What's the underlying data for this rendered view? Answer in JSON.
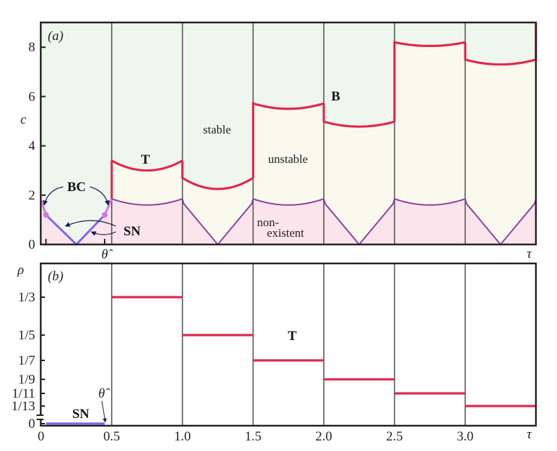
{
  "colors": {
    "stable": "#eef6ee",
    "unstable": "#f9f9ee",
    "nonexistent": "#fbe4ec",
    "torus_boundary": "#e0284a",
    "lower_boundary": "#8b3fa0",
    "saddle_node": "#7b68ee",
    "border_collision": "#d277e6",
    "separator": "#555555",
    "axis": "#222222"
  },
  "chart_data": [
    {
      "panel": "(a)",
      "type": "area",
      "xlabel": "τ",
      "ylabel": "c",
      "xlim": [
        0,
        3.5
      ],
      "ylim": [
        0,
        9
      ],
      "grid": false,
      "yticks": [
        0,
        2,
        4,
        6,
        8
      ],
      "ytick_labels": [
        "0",
        "2",
        "4",
        "6",
        "8"
      ],
      "xtick_marks": [
        0.035,
        0.45
      ],
      "xtick_labels": [
        "",
        "θ̂"
      ],
      "separators": [
        0.5,
        1.0,
        1.5,
        2.0,
        2.5,
        3.0
      ],
      "region_labels": {
        "stable": "stable",
        "unstable": "unstable",
        "nonexistent_1": "non-",
        "nonexistent_2": "existent"
      },
      "annotations": {
        "T": "T",
        "B": "B",
        "BC": "BC",
        "SN": "SN"
      },
      "first_interval_boundary": {
        "border_collision_left": [
          [
            0,
            1.8
          ],
          [
            0.035,
            1.2
          ]
        ],
        "saddle_node": [
          [
            0.035,
            1.2
          ],
          [
            0.25,
            0
          ],
          [
            0.45,
            1.2
          ]
        ],
        "border_collision_right": [
          [
            0.45,
            1.2
          ],
          [
            0.5,
            1.85
          ]
        ]
      },
      "intervals": [
        {
          "tau": [
            0.5,
            1.0
          ],
          "upper_ends": 3.4,
          "upper_min": 3.0,
          "lower": "arc",
          "lower_ends": 1.85,
          "lower_min": 1.6
        },
        {
          "tau": [
            1.0,
            1.5
          ],
          "upper_ends": 2.7,
          "upper_min": 2.25,
          "lower": "v",
          "lower_ends": 1.85,
          "lower_min": 0
        },
        {
          "tau": [
            1.5,
            2.0
          ],
          "upper_ends": 5.72,
          "upper_min": 5.5,
          "lower": "arc",
          "lower_ends": 1.85,
          "lower_min": 1.6
        },
        {
          "tau": [
            2.0,
            2.5
          ],
          "upper_ends": 4.98,
          "upper_min": 4.78,
          "lower": "v",
          "lower_ends": 1.85,
          "lower_min": 0
        },
        {
          "tau": [
            2.5,
            3.0
          ],
          "upper_ends": 8.2,
          "upper_min": 8.05,
          "lower": "arc",
          "lower_ends": 1.85,
          "lower_min": 1.6
        },
        {
          "tau": [
            3.0,
            3.5
          ],
          "upper_ends": 7.5,
          "upper_min": 7.3,
          "lower": "v",
          "lower_ends": 1.85,
          "lower_min": 0
        }
      ]
    },
    {
      "panel": "(b)",
      "type": "line",
      "xlabel": "τ",
      "ylabel": "ρ",
      "xlim": [
        0,
        3.5
      ],
      "grid": false,
      "xticks": [
        0,
        0.5,
        1.0,
        1.5,
        2.0,
        2.5,
        3.0
      ],
      "xtick_labels": [
        "0",
        "0.5",
        "1.0",
        "1.5",
        "2.0",
        "2.5",
        "3.0"
      ],
      "yticks": [
        "0",
        "1/13",
        "1/11",
        "1/9",
        "1/7",
        "1/5",
        "1/3"
      ],
      "y_axis_break": true,
      "separators": [
        0.5,
        1.0,
        1.5,
        2.0,
        2.5,
        3.0
      ],
      "annotations": {
        "T": "T",
        "SN": "SN",
        "theta_hat": "θ̂"
      },
      "segments": [
        {
          "tau": [
            0.035,
            0.45
          ],
          "rho": "0",
          "type": "SN"
        },
        {
          "tau": [
            0.5,
            1.0
          ],
          "rho": "1/3",
          "type": "T"
        },
        {
          "tau": [
            1.0,
            1.5
          ],
          "rho": "1/5",
          "type": "T"
        },
        {
          "tau": [
            1.5,
            2.0
          ],
          "rho": "1/7",
          "type": "T"
        },
        {
          "tau": [
            2.0,
            2.5
          ],
          "rho": "1/9",
          "type": "T"
        },
        {
          "tau": [
            2.5,
            3.0
          ],
          "rho": "1/11",
          "type": "T"
        },
        {
          "tau": [
            3.0,
            3.5
          ],
          "rho": "1/13",
          "type": "T"
        }
      ]
    }
  ]
}
